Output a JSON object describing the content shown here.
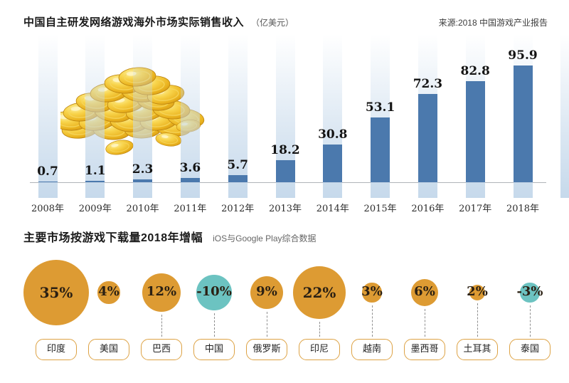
{
  "chart_data": [
    {
      "type": "bar",
      "title": "中国自主研发网络游戏海外市场实际销售收入",
      "unit_label": "（亿美元）",
      "source": "来源:2018 中国游戏产业报告",
      "categories": [
        "2008年",
        "2009年",
        "2010年",
        "2011年",
        "2012年",
        "2013年",
        "2014年",
        "2015年",
        "2016年",
        "2017年",
        "2018年"
      ],
      "values": [
        0.7,
        1.1,
        2.3,
        3.6,
        5.7,
        18.2,
        30.8,
        53.1,
        72.3,
        82.8,
        95.9
      ],
      "value_labels": [
        "0.7",
        "1.1",
        "2.3",
        "3.6",
        "5.7",
        "18.2",
        "30.8",
        "53.1",
        "72.3",
        "82.8",
        "95.9"
      ],
      "ylim": [
        0,
        100
      ],
      "bar_color": "#4b79ad",
      "bg_column_color": "#c3d7ea",
      "axis_line_color": "#b0b4b8",
      "grid": false,
      "legend": "none",
      "decoration": "pile-of-gold-coins-illustration-over-left-columns"
    },
    {
      "type": "bubble",
      "title": "主要市场按游戏下载量2018年增幅",
      "subtitle": "iOS与Google Play综合数据",
      "categories": [
        "印度",
        "美国",
        "巴西",
        "中国",
        "俄罗斯",
        "印尼",
        "越南",
        "墨西哥",
        "土耳其",
        "泰国"
      ],
      "values_pct": [
        35,
        4,
        12,
        -10,
        9,
        22,
        3,
        6,
        2,
        -3
      ],
      "value_labels": [
        "35%",
        "4%",
        "12%",
        "-10%",
        "9%",
        "22%",
        "3%",
        "6%",
        "2%",
        "-3%"
      ],
      "positive_color": "#dd9b33",
      "negative_color": "#6cc3c1",
      "label_box_border_color": "#dda244",
      "connector_style": "dashed-gray",
      "connector_shown": [
        false,
        false,
        true,
        true,
        true,
        true,
        true,
        true,
        true,
        true
      ],
      "legend": "none"
    }
  ]
}
